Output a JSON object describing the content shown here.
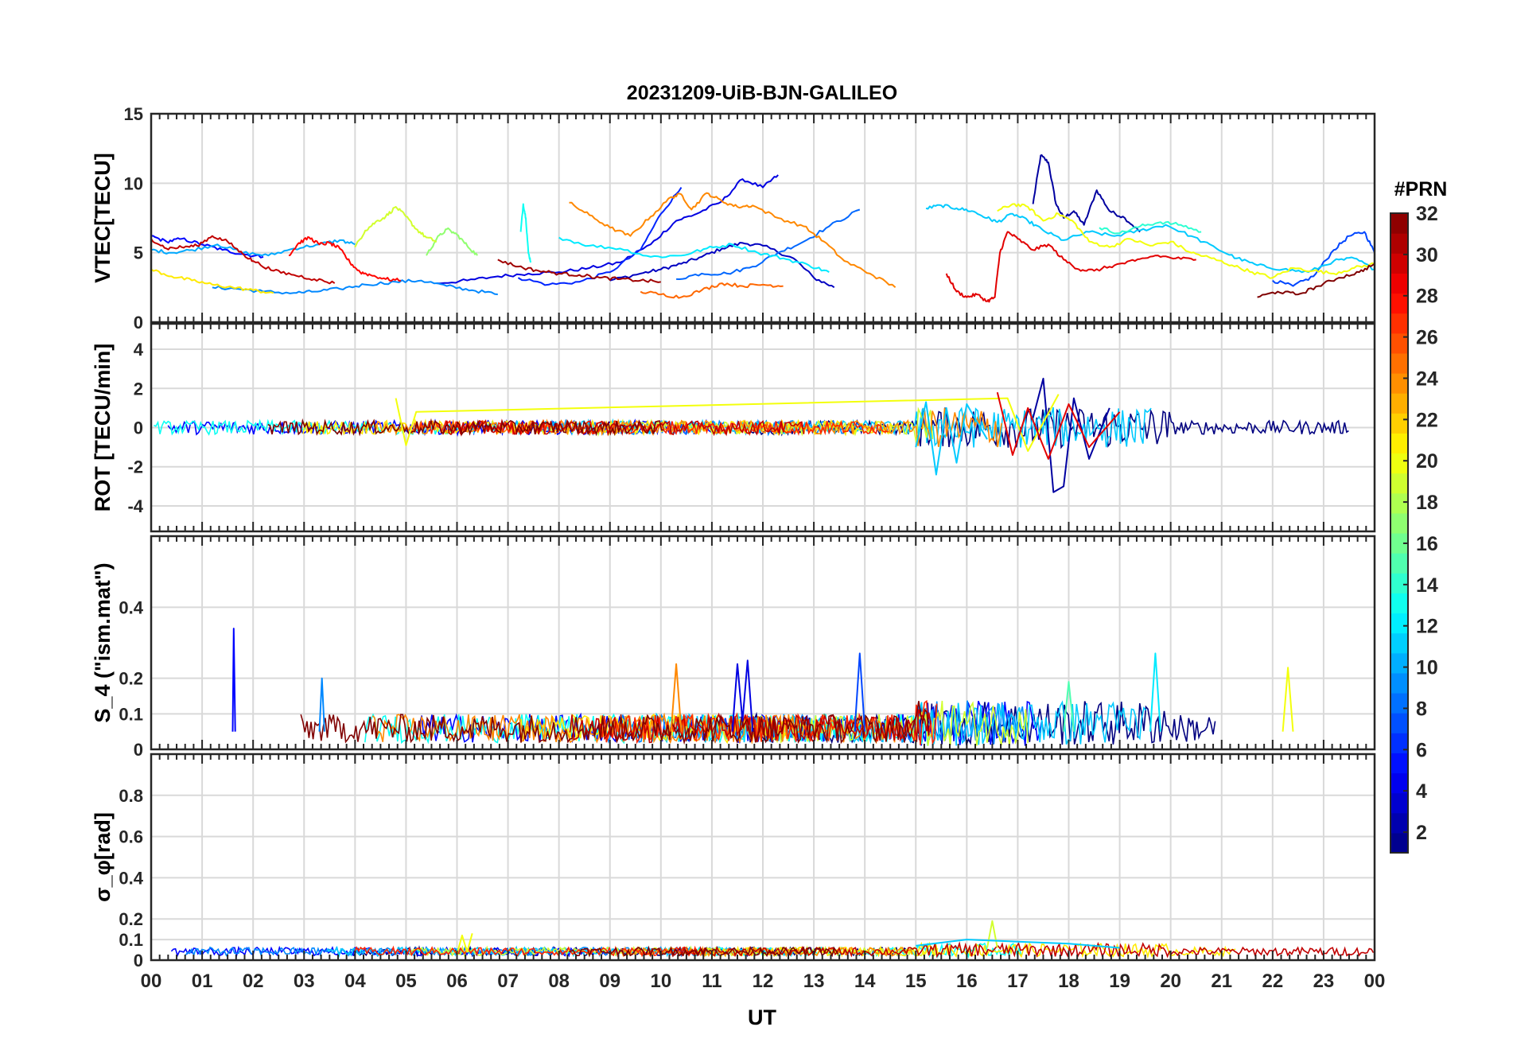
{
  "figure_title": "20231209-UiB-BJN-GALILEO",
  "x_axis": {
    "label": "UT",
    "range": [
      0,
      24
    ],
    "tick_labels": [
      "00",
      "01",
      "02",
      "03",
      "04",
      "05",
      "06",
      "07",
      "08",
      "09",
      "10",
      "11",
      "12",
      "13",
      "14",
      "15",
      "16",
      "17",
      "18",
      "19",
      "20",
      "21",
      "22",
      "23",
      "00"
    ]
  },
  "colorbar": {
    "title": "#PRN",
    "range": [
      1,
      32
    ],
    "tick_labels": [
      "2",
      "4",
      "6",
      "8",
      "10",
      "12",
      "14",
      "16",
      "18",
      "20",
      "22",
      "24",
      "26",
      "28",
      "30",
      "32"
    ],
    "colormap": "jet",
    "colors": [
      "#000080",
      "#0000ff",
      "#0080ff",
      "#00ffff",
      "#80ff80",
      "#ffff00",
      "#ff8000",
      "#ff0000",
      "#800000"
    ]
  },
  "chart_data": [
    {
      "type": "line",
      "ylabel": "VTEC[TECU]",
      "ylim": [
        0,
        15
      ],
      "ytick_labels": [
        "0",
        "5",
        "10",
        "15"
      ],
      "grid": true,
      "series": [
        {
          "prn": 2,
          "x": [
            17.3,
            17.45,
            17.6,
            17.75,
            17.9,
            18.1,
            18.3,
            18.55,
            18.8,
            19.1,
            19.4
          ],
          "y": [
            8.5,
            12.0,
            11.5,
            8.5,
            7.5,
            8.0,
            7.0,
            9.5,
            8.0,
            7.5,
            6.5
          ]
        },
        {
          "prn": 3,
          "x": [
            9.0,
            9.6,
            10.0,
            10.4,
            10.8,
            11.2,
            11.6,
            12.0,
            12.6,
            13.0,
            13.4
          ],
          "y": [
            3.0,
            3.5,
            3.8,
            4.2,
            4.7,
            5.3,
            5.7,
            5.5,
            4.6,
            3.2,
            2.5
          ]
        },
        {
          "prn": 4,
          "x": [
            5.6,
            6.2,
            6.8,
            7.4,
            8.0,
            8.6,
            9.2,
            9.8,
            10.3,
            10.7,
            11.2,
            11.6,
            12.0,
            12.3
          ],
          "y": [
            2.8,
            3.0,
            3.3,
            3.5,
            3.6,
            3.9,
            4.3,
            5.6,
            7.3,
            7.8,
            8.7,
            10.3,
            9.7,
            10.6
          ]
        },
        {
          "prn": 5,
          "x": [
            0.0,
            0.3,
            0.6,
            1.0,
            1.4,
            1.8,
            2.2
          ],
          "y": [
            6.2,
            5.8,
            6.0,
            5.6,
            5.2,
            4.9,
            4.7
          ]
        },
        {
          "prn": 6,
          "x": [
            7.2,
            7.8,
            8.4,
            9.0,
            9.6,
            10.0,
            10.4
          ],
          "y": [
            3.2,
            2.7,
            2.9,
            3.6,
            5.2,
            7.8,
            9.7
          ]
        },
        {
          "prn": 7,
          "x": [
            22.0,
            22.4,
            22.8,
            23.2,
            23.5,
            23.8,
            24.0
          ],
          "y": [
            3.0,
            2.6,
            3.3,
            5.2,
            6.2,
            6.5,
            5.0
          ]
        },
        {
          "prn": 8,
          "x": [
            10.3,
            10.8,
            11.3,
            11.8,
            12.3,
            12.8,
            13.3,
            13.9
          ],
          "y": [
            3.1,
            3.5,
            3.5,
            4.0,
            5.0,
            5.8,
            6.9,
            8.1
          ]
        },
        {
          "prn": 9,
          "x": [
            1.2,
            1.7,
            2.2,
            2.8,
            3.2,
            3.7,
            4.2,
            4.8,
            5.3,
            5.8,
            6.3,
            6.8
          ],
          "y": [
            2.5,
            2.4,
            2.2,
            2.1,
            2.2,
            2.4,
            2.7,
            2.9,
            3.0,
            2.6,
            2.3,
            2.0
          ]
        },
        {
          "prn": 10,
          "x": [
            0.0,
            0.4,
            0.8,
            1.3,
            1.8,
            2.3,
            2.8,
            3.3,
            3.7,
            4.0
          ],
          "y": [
            5.2,
            5.0,
            5.2,
            5.6,
            5.0,
            4.8,
            5.3,
            5.6,
            5.9,
            5.6
          ]
        },
        {
          "prn": 11,
          "x": [
            15.2,
            15.5,
            15.8,
            16.1,
            16.4,
            16.6,
            16.9,
            17.2,
            17.5,
            17.9,
            18.4,
            18.9,
            19.4,
            19.9,
            20.4,
            20.9,
            21.3,
            21.7,
            22.2,
            22.7,
            23.2,
            23.6,
            24.0
          ],
          "y": [
            8.2,
            8.4,
            8.2,
            8.0,
            7.5,
            7.2,
            7.8,
            7.3,
            6.6,
            5.9,
            6.5,
            6.2,
            6.6,
            7.0,
            6.2,
            5.3,
            4.6,
            4.1,
            3.8,
            3.6,
            4.4,
            4.6,
            3.8
          ]
        },
        {
          "prn": 12,
          "x": [
            8.0,
            8.6,
            9.2,
            9.8,
            10.4,
            10.9,
            11.4,
            11.9,
            12.4,
            12.9,
            13.3
          ],
          "y": [
            6.1,
            5.5,
            5.3,
            4.7,
            4.8,
            5.3,
            5.6,
            5.0,
            4.6,
            4.1,
            3.6
          ]
        },
        {
          "prn": 13,
          "x": [
            7.25,
            7.3,
            7.35,
            7.4,
            7.45
          ],
          "y": [
            6.5,
            8.5,
            7.5,
            5.0,
            4.3
          ]
        },
        {
          "prn": 14,
          "x": [
            18.6,
            19.0,
            19.4,
            19.8,
            20.2,
            20.6
          ],
          "y": [
            6.8,
            6.4,
            6.9,
            7.2,
            7.0,
            6.5
          ]
        },
        {
          "prn": 17,
          "x": [
            5.4,
            5.6,
            5.8,
            6.0,
            6.2,
            6.4
          ],
          "y": [
            4.8,
            6.0,
            6.7,
            6.3,
            5.5,
            4.8
          ]
        },
        {
          "prn": 19,
          "x": [
            4.0,
            4.2,
            4.4,
            4.6,
            4.8,
            5.0,
            5.2,
            5.4,
            5.6
          ],
          "y": [
            5.4,
            6.6,
            7.2,
            7.6,
            8.3,
            7.6,
            6.7,
            6.1,
            5.8
          ]
        },
        {
          "prn": 20,
          "x": [
            16.6,
            16.9,
            17.2,
            17.5,
            17.8,
            18.1,
            18.4,
            18.8,
            19.2,
            19.6,
            20.0,
            20.4,
            20.8,
            21.2,
            21.6,
            22.0,
            22.4,
            22.8,
            23.2,
            23.6,
            24.0
          ],
          "y": [
            8.0,
            8.5,
            8.3,
            7.3,
            7.8,
            7.2,
            5.8,
            5.4,
            6.0,
            5.5,
            5.8,
            5.0,
            4.6,
            4.1,
            3.6,
            3.2,
            3.9,
            3.7,
            3.5,
            3.9,
            4.2
          ]
        },
        {
          "prn": 21,
          "x": [
            0.0,
            0.4,
            0.8,
            1.2,
            1.6,
            2.0,
            2.4
          ],
          "y": [
            3.8,
            3.3,
            3.0,
            2.7,
            2.5,
            2.3,
            2.1
          ]
        },
        {
          "prn": 24,
          "x": [
            8.2,
            8.6,
            9.0,
            9.4,
            9.8,
            10.2,
            10.4,
            10.6,
            10.9,
            11.2,
            11.5,
            11.8,
            12.3,
            12.8,
            13.2,
            13.6,
            14.1,
            14.6
          ],
          "y": [
            8.6,
            7.7,
            6.8,
            6.2,
            7.6,
            9.0,
            9.2,
            8.1,
            9.3,
            8.7,
            8.3,
            8.4,
            7.5,
            6.9,
            5.8,
            4.4,
            3.5,
            2.5
          ]
        },
        {
          "prn": 25,
          "x": [
            9.6,
            10.0,
            10.4,
            10.8,
            11.2,
            11.6,
            12.0,
            12.4
          ],
          "y": [
            2.2,
            2.0,
            1.8,
            2.3,
            2.8,
            2.6,
            2.7,
            2.6
          ]
        },
        {
          "prn": 28,
          "x": [
            2.7,
            2.9,
            3.1,
            3.3,
            3.5,
            3.7,
            3.9,
            4.1,
            4.3,
            4.6,
            4.9
          ],
          "y": [
            4.8,
            5.7,
            6.1,
            5.6,
            5.7,
            5.3,
            4.3,
            3.6,
            3.4,
            3.1,
            3.0
          ]
        },
        {
          "prn": 29,
          "x": [
            15.6,
            15.8,
            16.0,
            16.2,
            16.4,
            16.55,
            16.65,
            16.8,
            17.0,
            17.3,
            17.6,
            17.9,
            18.2,
            18.5,
            18.9,
            19.3,
            19.7,
            20.1,
            20.5
          ],
          "y": [
            3.5,
            2.2,
            1.8,
            2.0,
            1.5,
            1.8,
            5.0,
            6.5,
            6.0,
            5.2,
            5.6,
            4.5,
            3.8,
            3.7,
            4.1,
            4.4,
            4.8,
            4.6,
            4.5
          ]
        },
        {
          "prn": 30,
          "x": [
            0.0,
            0.3,
            0.6,
            0.9,
            1.2,
            1.5,
            1.8,
            2.0,
            2.4,
            2.8,
            3.2,
            3.6
          ],
          "y": [
            6.0,
            5.3,
            5.4,
            5.5,
            6.2,
            5.8,
            4.9,
            4.4,
            3.7,
            3.4,
            3.1,
            2.8
          ]
        },
        {
          "prn": 31,
          "x": [
            6.8,
            7.2,
            7.6,
            8.0,
            8.4,
            8.8,
            9.2,
            9.6,
            10.0
          ],
          "y": [
            4.5,
            4.0,
            3.7,
            3.5,
            3.4,
            3.2,
            3.1,
            3.0,
            2.9
          ]
        },
        {
          "prn": 32,
          "x": [
            21.7,
            22.1,
            22.5,
            22.9,
            23.3,
            23.7,
            24.0
          ],
          "y": [
            1.8,
            2.2,
            2.0,
            2.6,
            3.2,
            3.6,
            4.2
          ]
        }
      ]
    },
    {
      "type": "line",
      "ylabel": "ROT [TECU/min]",
      "ylim": [
        -5.3,
        5.3
      ],
      "ytick_labels": [
        "-4",
        "-2",
        "0",
        "2",
        "4"
      ],
      "grid": true,
      "series": [
        {
          "prn": 2,
          "x": [
            17.3,
            17.5,
            17.7,
            17.9,
            18.1,
            18.4,
            18.8
          ],
          "y": [
            0.5,
            2.5,
            -3.3,
            -3.0,
            1.5,
            -1.6,
            1.0
          ]
        },
        {
          "prn": 11,
          "x": [
            15.0,
            15.2,
            15.4,
            15.6,
            15.8,
            16.0,
            16.4
          ],
          "y": [
            -1.0,
            1.3,
            -2.4,
            1.0,
            -1.8,
            1.2,
            -0.6
          ]
        },
        {
          "prn": 20,
          "x": [
            4.8,
            5.0,
            5.2,
            16.8,
            17.2,
            17.8
          ],
          "y": [
            1.5,
            -0.9,
            0.8,
            1.5,
            -1.2,
            1.7
          ]
        },
        {
          "prn": 29,
          "x": [
            16.6,
            16.9,
            17.2,
            17.6,
            18.0,
            18.4,
            19.0
          ],
          "y": [
            1.8,
            -1.4,
            1.0,
            -1.6,
            1.2,
            -1.0,
            0.8
          ]
        }
      ]
    },
    {
      "type": "line",
      "ylabel": "S_4 (\"ism.mat\")",
      "ylim": [
        0,
        0.6
      ],
      "ytick_labels": [
        "0",
        "0.1",
        "0.2",
        "0.4"
      ],
      "grid": true,
      "series": [
        {
          "prn": 5,
          "x": [
            1.6,
            1.62,
            1.65
          ],
          "y": [
            0.05,
            0.34,
            0.05
          ]
        },
        {
          "prn": 9,
          "x": [
            3.3,
            3.35,
            3.4
          ],
          "y": [
            0.05,
            0.2,
            0.05
          ]
        },
        {
          "prn": 4,
          "x": [
            11.4,
            11.5,
            11.6,
            11.7,
            11.8
          ],
          "y": [
            0.05,
            0.24,
            0.08,
            0.25,
            0.05
          ]
        },
        {
          "prn": 7,
          "x": [
            13.8,
            13.9,
            14.0
          ],
          "y": [
            0.05,
            0.27,
            0.05
          ]
        },
        {
          "prn": 24,
          "x": [
            10.2,
            10.3,
            10.4
          ],
          "y": [
            0.05,
            0.24,
            0.05
          ]
        },
        {
          "prn": 12,
          "x": [
            19.6,
            19.7,
            19.8
          ],
          "y": [
            0.05,
            0.27,
            0.05
          ]
        },
        {
          "prn": 20,
          "x": [
            22.2,
            22.3,
            22.4
          ],
          "y": [
            0.05,
            0.23,
            0.05
          ]
        },
        {
          "prn": 15,
          "x": [
            17.9,
            18.0,
            18.1
          ],
          "y": [
            0.05,
            0.19,
            0.05
          ]
        }
      ]
    },
    {
      "type": "line",
      "ylabel": "σ_φ[rad]",
      "ylim": [
        0,
        1.0
      ],
      "ytick_labels": [
        "0",
        "0.1",
        "0.2",
        "0.4",
        "0.6",
        "0.8"
      ],
      "grid": true,
      "series": [
        {
          "prn": 20,
          "x": [
            6.0,
            6.1,
            6.2,
            6.3
          ],
          "y": [
            0.03,
            0.12,
            0.04,
            0.13
          ]
        },
        {
          "prn": 19,
          "x": [
            16.4,
            16.5,
            16.6
          ],
          "y": [
            0.06,
            0.19,
            0.06
          ]
        },
        {
          "prn": 11,
          "x": [
            15.0,
            16.0,
            17.0,
            18.0,
            19.0
          ],
          "y": [
            0.07,
            0.1,
            0.09,
            0.08,
            0.06
          ]
        }
      ]
    }
  ]
}
